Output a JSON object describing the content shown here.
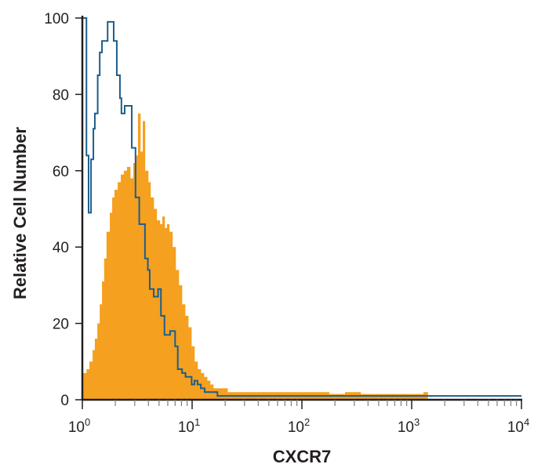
{
  "chart_data": {
    "type": "area",
    "title": "",
    "xlabel": "CXCR7",
    "ylabel": "Relative Cell Number",
    "xscale": "log",
    "xlim": [
      1,
      10000
    ],
    "ylim": [
      0,
      100
    ],
    "grid": false,
    "x_tick_labels": [
      {
        "base": "10",
        "exp": "0"
      },
      {
        "base": "10",
        "exp": "1"
      },
      {
        "base": "10",
        "exp": "2"
      },
      {
        "base": "10",
        "exp": "3"
      },
      {
        "base": "10",
        "exp": "4"
      }
    ],
    "y_tick_labels": [
      "0",
      "20",
      "40",
      "60",
      "80",
      "100"
    ],
    "series": [
      {
        "style": "filled-histogram",
        "color": "#F5A01F",
        "points": [
          [
            1.0,
            7
          ],
          [
            1.09,
            8
          ],
          [
            1.16,
            10
          ],
          [
            1.24,
            13
          ],
          [
            1.3,
            16
          ],
          [
            1.37,
            20
          ],
          [
            1.44,
            25
          ],
          [
            1.51,
            31
          ],
          [
            1.58,
            37
          ],
          [
            1.66,
            44
          ],
          [
            1.78,
            49
          ],
          [
            1.87,
            53
          ],
          [
            1.96,
            55
          ],
          [
            2.1,
            57
          ],
          [
            2.24,
            59
          ],
          [
            2.39,
            60
          ],
          [
            2.55,
            61
          ],
          [
            2.73,
            58
          ],
          [
            2.91,
            62
          ],
          [
            3.06,
            64
          ],
          [
            3.21,
            75
          ],
          [
            3.38,
            65
          ],
          [
            3.55,
            73
          ],
          [
            3.72,
            60
          ],
          [
            3.98,
            57
          ],
          [
            4.18,
            53
          ],
          [
            4.47,
            50
          ],
          [
            4.76,
            47
          ],
          [
            5.09,
            46
          ],
          [
            5.35,
            48
          ],
          [
            5.62,
            45
          ],
          [
            5.9,
            46
          ],
          [
            6.2,
            44
          ],
          [
            6.62,
            40
          ],
          [
            7.08,
            34
          ],
          [
            7.56,
            30
          ],
          [
            8.08,
            25
          ],
          [
            8.63,
            22
          ],
          [
            9.22,
            19
          ],
          [
            9.85,
            14
          ],
          [
            10.5,
            10
          ],
          [
            11.2,
            8
          ],
          [
            12.0,
            7
          ],
          [
            12.8,
            6
          ],
          [
            13.7,
            5
          ],
          [
            14.6,
            4
          ],
          [
            15.6,
            3
          ],
          [
            17.8,
            3
          ],
          [
            21.0,
            2
          ],
          [
            24.7,
            2
          ],
          [
            34.4,
            2
          ],
          [
            47.8,
            2
          ],
          [
            66.4,
            2
          ],
          [
            92.3,
            2
          ],
          [
            128,
            2
          ],
          [
            177,
            1.5
          ],
          [
            247,
            2
          ],
          [
            343,
            1.5
          ],
          [
            477,
            1.5
          ],
          [
            663,
            1.5
          ],
          [
            921,
            1.5
          ],
          [
            1280,
            2
          ],
          [
            1400,
            0
          ]
        ]
      },
      {
        "style": "outline-histogram",
        "color": "#1C5E8C",
        "points": [
          [
            1.0,
            100
          ],
          [
            1.09,
            64
          ],
          [
            1.14,
            49
          ],
          [
            1.2,
            63
          ],
          [
            1.26,
            71
          ],
          [
            1.3,
            75
          ],
          [
            1.38,
            85
          ],
          [
            1.44,
            91
          ],
          [
            1.51,
            94
          ],
          [
            1.7,
            99
          ],
          [
            1.93,
            94
          ],
          [
            2.06,
            85
          ],
          [
            2.2,
            79
          ],
          [
            2.27,
            75
          ],
          [
            2.43,
            77
          ],
          [
            2.82,
            66
          ],
          [
            3.05,
            53
          ],
          [
            3.3,
            46
          ],
          [
            3.72,
            37
          ],
          [
            3.95,
            34
          ],
          [
            4.11,
            29
          ],
          [
            4.47,
            27
          ],
          [
            4.9,
            29
          ],
          [
            5.2,
            22
          ],
          [
            5.6,
            17
          ],
          [
            6.3,
            18
          ],
          [
            7.0,
            14
          ],
          [
            7.4,
            8
          ],
          [
            8.1,
            7
          ],
          [
            8.7,
            6
          ],
          [
            9.9,
            4
          ],
          [
            10.5,
            5
          ],
          [
            11.2,
            4
          ],
          [
            12,
            3
          ],
          [
            13,
            2
          ],
          [
            15.5,
            2
          ],
          [
            17,
            1
          ],
          [
            10000,
            1
          ]
        ]
      }
    ]
  }
}
